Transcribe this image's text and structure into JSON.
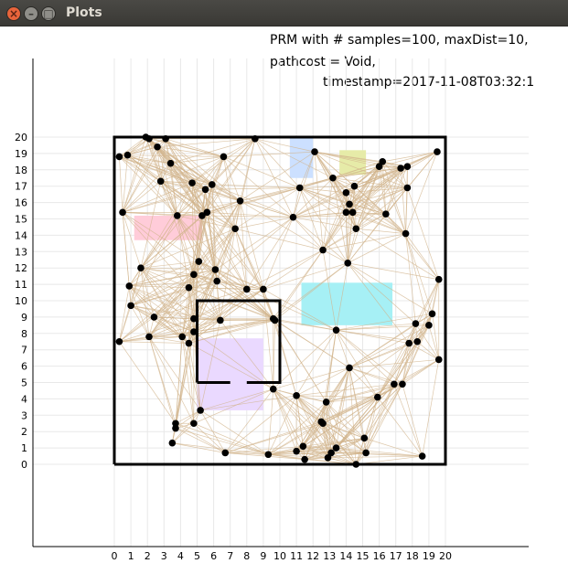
{
  "window": {
    "title": "Plots",
    "buttons": [
      {
        "name": "close",
        "glyph": "×"
      },
      {
        "name": "minimize",
        "glyph": "–"
      },
      {
        "name": "maximize",
        "glyph": "□"
      }
    ]
  },
  "chart_data": {
    "type": "scatter",
    "title_lines": [
      "PRM with # samples=100, maxDist=10,",
      "pathcost = Void,",
      "timestamp=2017-11-08T03:32:1"
    ],
    "xlim": [
      0,
      20
    ],
    "ylim": [
      0,
      20
    ],
    "x_ticks": [
      "0",
      "1",
      "2",
      "3",
      "4",
      "5",
      "6",
      "7",
      "8",
      "9",
      "10",
      "11",
      "12",
      "13",
      "14",
      "15",
      "16",
      "17",
      "18",
      "19",
      "20"
    ],
    "y_ticks": [
      "0",
      "1",
      "2",
      "3",
      "4",
      "5",
      "6",
      "7",
      "8",
      "9",
      "10",
      "11",
      "12",
      "13",
      "14",
      "15",
      "16",
      "17",
      "18",
      "19",
      "20"
    ],
    "grid": true,
    "colors": {
      "node": "#000000",
      "edge": "#d2b48c",
      "wall": "#000000",
      "grid": "#e8e8e8"
    },
    "workspace_boundary": [
      [
        0,
        0
      ],
      [
        20,
        0
      ],
      [
        20,
        20
      ],
      [
        0,
        20
      ],
      [
        0,
        0
      ]
    ],
    "inner_walls": [
      [
        [
          5,
          5
        ],
        [
          5,
          10
        ],
        [
          10,
          10
        ],
        [
          10,
          5
        ],
        [
          8,
          5
        ]
      ],
      [
        [
          5,
          5
        ],
        [
          7,
          5
        ]
      ]
    ],
    "regions": [
      {
        "name": "blue-region",
        "color": "#cce0ff",
        "x": [
          10.6,
          12.0
        ],
        "y": [
          17.5,
          20.0
        ]
      },
      {
        "name": "olive-region",
        "color": "#e6eba8",
        "x": [
          13.6,
          15.2
        ],
        "y": [
          17.7,
          19.2
        ]
      },
      {
        "name": "pink-region",
        "color": "#ffccd9",
        "x": [
          1.2,
          5.3
        ],
        "y": [
          13.7,
          15.2
        ]
      },
      {
        "name": "cyan-region",
        "color": "#a6f0f5",
        "x": [
          11.3,
          16.8
        ],
        "y": [
          8.5,
          11.1
        ]
      },
      {
        "name": "lavender-region",
        "color": "#ead9ff",
        "x": [
          5.0,
          9.0
        ],
        "y": [
          3.3,
          7.7
        ]
      }
    ],
    "nodes": [
      [
        0.3,
        18.8
      ],
      [
        0.8,
        18.9
      ],
      [
        1.9,
        20.0
      ],
      [
        2.1,
        19.9
      ],
      [
        2.6,
        19.4
      ],
      [
        3.1,
        19.9
      ],
      [
        3.4,
        18.4
      ],
      [
        2.8,
        17.3
      ],
      [
        4.7,
        17.2
      ],
      [
        5.5,
        16.8
      ],
      [
        5.9,
        17.1
      ],
      [
        6.6,
        18.8
      ],
      [
        8.5,
        19.9
      ],
      [
        12.1,
        19.1
      ],
      [
        13.2,
        17.5
      ],
      [
        11.2,
        16.9
      ],
      [
        14.0,
        16.6
      ],
      [
        14.5,
        17.0
      ],
      [
        16.2,
        18.5
      ],
      [
        16.0,
        18.2
      ],
      [
        17.3,
        18.1
      ],
      [
        17.7,
        18.2
      ],
      [
        19.5,
        19.1
      ],
      [
        17.7,
        16.9
      ],
      [
        0.5,
        15.4
      ],
      [
        3.8,
        15.2
      ],
      [
        5.3,
        15.2
      ],
      [
        5.6,
        15.4
      ],
      [
        7.6,
        16.1
      ],
      [
        7.3,
        14.4
      ],
      [
        10.8,
        15.1
      ],
      [
        14.2,
        15.9
      ],
      [
        14.0,
        15.4
      ],
      [
        14.4,
        15.4
      ],
      [
        14.6,
        14.4
      ],
      [
        16.4,
        15.3
      ],
      [
        17.6,
        14.1
      ],
      [
        12.6,
        13.1
      ],
      [
        14.1,
        12.3
      ],
      [
        1.6,
        12.0
      ],
      [
        5.1,
        12.4
      ],
      [
        6.1,
        11.9
      ],
      [
        6.2,
        11.2
      ],
      [
        4.8,
        11.6
      ],
      [
        8.0,
        10.7
      ],
      [
        9.0,
        10.7
      ],
      [
        0.9,
        10.9
      ],
      [
        1.0,
        9.7
      ],
      [
        4.5,
        10.8
      ],
      [
        19.6,
        11.3
      ],
      [
        2.4,
        9.0
      ],
      [
        4.8,
        8.9
      ],
      [
        4.8,
        8.1
      ],
      [
        6.4,
        8.8
      ],
      [
        9.6,
        8.9
      ],
      [
        9.7,
        8.8
      ],
      [
        13.4,
        8.2
      ],
      [
        0.3,
        7.5
      ],
      [
        2.1,
        7.8
      ],
      [
        4.1,
        7.8
      ],
      [
        4.5,
        7.4
      ],
      [
        17.8,
        7.4
      ],
      [
        18.3,
        7.5
      ],
      [
        19.0,
        8.5
      ],
      [
        19.2,
        9.2
      ],
      [
        18.2,
        8.6
      ],
      [
        19.6,
        6.4
      ],
      [
        14.2,
        5.9
      ],
      [
        16.9,
        4.9
      ],
      [
        17.4,
        4.9
      ],
      [
        9.6,
        4.6
      ],
      [
        11.0,
        4.2
      ],
      [
        12.8,
        3.8
      ],
      [
        15.9,
        4.1
      ],
      [
        5.2,
        3.3
      ],
      [
        3.7,
        2.5
      ],
      [
        3.7,
        2.2
      ],
      [
        4.8,
        2.5
      ],
      [
        12.5,
        2.6
      ],
      [
        12.6,
        2.5
      ],
      [
        3.5,
        1.3
      ],
      [
        15.1,
        1.6
      ],
      [
        13.4,
        1.0
      ],
      [
        11.4,
        1.1
      ],
      [
        11.0,
        0.8
      ],
      [
        13.1,
        0.7
      ],
      [
        6.7,
        0.7
      ],
      [
        9.3,
        0.6
      ],
      [
        11.5,
        0.3
      ],
      [
        12.9,
        0.4
      ],
      [
        14.6,
        0.0
      ],
      [
        15.2,
        0.7
      ],
      [
        18.6,
        0.5
      ]
    ]
  }
}
